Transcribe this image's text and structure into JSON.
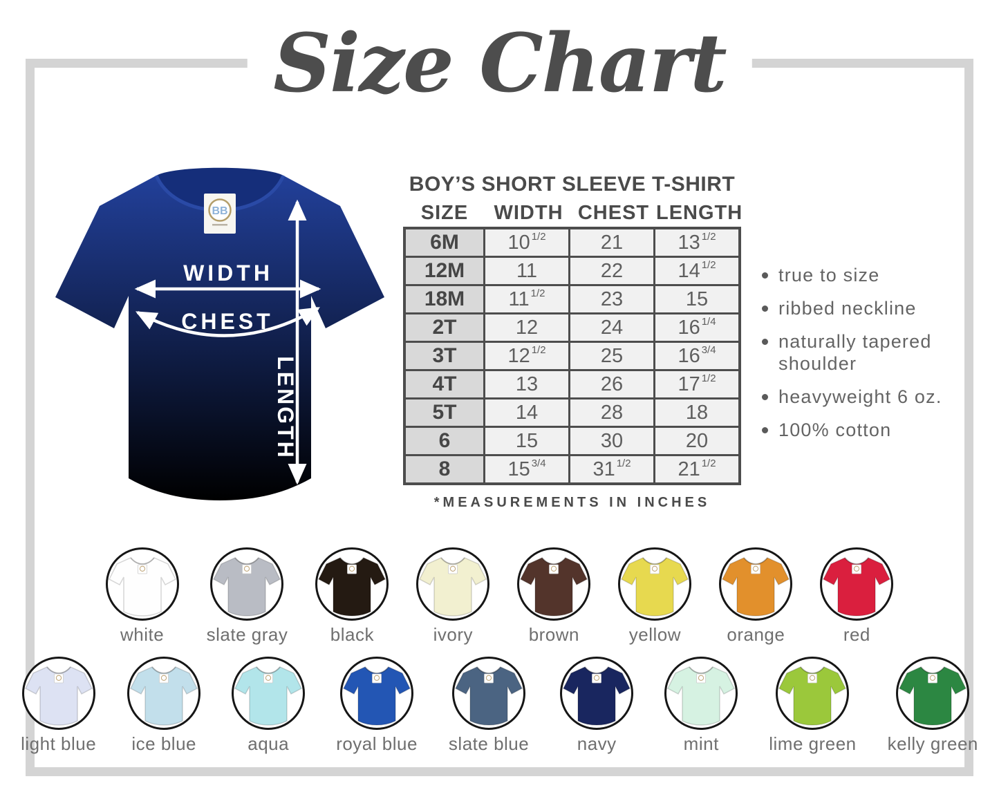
{
  "title": "Size Chart",
  "diagram": {
    "shirt_color": "#1f3a8d",
    "labels": {
      "width": "WIDTH",
      "chest": "CHEST",
      "length": "LENGTH"
    },
    "tag_text": "BB"
  },
  "size_table": {
    "heading": "BOY’S SHORT SLEEVE T-SHIRT",
    "columns": [
      "SIZE",
      "WIDTH",
      "CHEST",
      "LENGTH"
    ],
    "rows": [
      {
        "size": "6M",
        "width": "10 1/2",
        "chest": "21",
        "length": "13 1/2"
      },
      {
        "size": "12M",
        "width": "11",
        "chest": "22",
        "length": "14 1/2"
      },
      {
        "size": "18M",
        "width": "11 1/2",
        "chest": "23",
        "length": "15"
      },
      {
        "size": "2T",
        "width": "12",
        "chest": "24",
        "length": "16 1/4"
      },
      {
        "size": "3T",
        "width": "12 1/2",
        "chest": "25",
        "length": "16 3/4"
      },
      {
        "size": "4T",
        "width": "13",
        "chest": "26",
        "length": "17 1/2"
      },
      {
        "size": "5T",
        "width": "14",
        "chest": "28",
        "length": "18"
      },
      {
        "size": "6",
        "width": "15",
        "chest": "30",
        "length": "20"
      },
      {
        "size": "8",
        "width": "15 3/4",
        "chest": "31 1/2",
        "length": "21 1/2"
      }
    ],
    "footnote": "*MEASUREMENTS IN INCHES"
  },
  "features": [
    "true to size",
    "ribbed neckline",
    "naturally tapered shoulder",
    "heavyweight 6 oz.",
    "100% cotton"
  ],
  "colors": {
    "row1": [
      {
        "label": "white",
        "hex": "#fefefe"
      },
      {
        "label": "slate gray",
        "hex": "#b9bcc4"
      },
      {
        "label": "black",
        "hex": "#241a12"
      },
      {
        "label": "ivory",
        "hex": "#f2f0d0"
      },
      {
        "label": "brown",
        "hex": "#53342b"
      },
      {
        "label": "yellow",
        "hex": "#e7d94f"
      },
      {
        "label": "orange",
        "hex": "#e2902c"
      },
      {
        "label": "red",
        "hex": "#da1f3e"
      }
    ],
    "row2": [
      {
        "label": "light blue",
        "hex": "#dde2f3"
      },
      {
        "label": "ice blue",
        "hex": "#c2dfeb"
      },
      {
        "label": "aqua",
        "hex": "#b2e5ea"
      },
      {
        "label": "royal blue",
        "hex": "#2356b4"
      },
      {
        "label": "slate blue",
        "hex": "#4b6482"
      },
      {
        "label": "navy",
        "hex": "#19265f"
      },
      {
        "label": "mint",
        "hex": "#d6f2e2"
      },
      {
        "label": "lime green",
        "hex": "#9bc83b"
      },
      {
        "label": "kelly green",
        "hex": "#2c8742"
      }
    ]
  },
  "chart_data": {
    "type": "table",
    "title": "BOY’S SHORT SLEEVE T-SHIRT",
    "columns": [
      "SIZE",
      "WIDTH",
      "CHEST",
      "LENGTH"
    ],
    "rows": [
      [
        "6M",
        10.5,
        21,
        13.5
      ],
      [
        "12M",
        11,
        22,
        14.5
      ],
      [
        "18M",
        11.5,
        23,
        15
      ],
      [
        "2T",
        12,
        24,
        16.25
      ],
      [
        "3T",
        12.5,
        25,
        16.75
      ],
      [
        "4T",
        13,
        26,
        17.5
      ],
      [
        "5T",
        14,
        28,
        18
      ],
      [
        "6",
        15,
        30,
        20
      ],
      [
        "8",
        15.75,
        31.5,
        21.5
      ]
    ],
    "units": "inches"
  }
}
